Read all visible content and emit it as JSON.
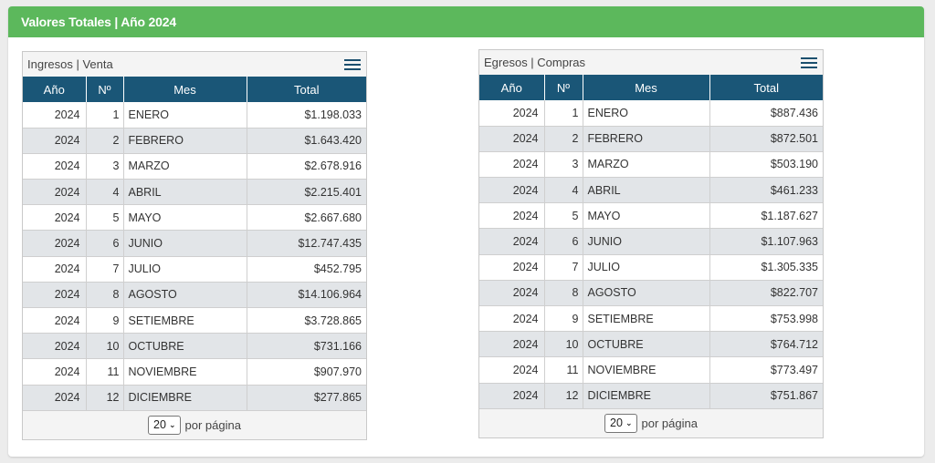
{
  "header": {
    "title": "Valores Totales | Año 2024"
  },
  "ingresos": {
    "title": "Ingresos | Venta",
    "columns": [
      "Año",
      "Nº",
      "Mes",
      "Total"
    ],
    "rows": [
      {
        "year": "2024",
        "num": "1",
        "mes": "ENERO",
        "total": "$1.198.033"
      },
      {
        "year": "2024",
        "num": "2",
        "mes": "FEBRERO",
        "total": "$1.643.420"
      },
      {
        "year": "2024",
        "num": "3",
        "mes": "MARZO",
        "total": "$2.678.916"
      },
      {
        "year": "2024",
        "num": "4",
        "mes": "ABRIL",
        "total": "$2.215.401"
      },
      {
        "year": "2024",
        "num": "5",
        "mes": "MAYO",
        "total": "$2.667.680"
      },
      {
        "year": "2024",
        "num": "6",
        "mes": "JUNIO",
        "total": "$12.747.435"
      },
      {
        "year": "2024",
        "num": "7",
        "mes": "JULIO",
        "total": "$452.795"
      },
      {
        "year": "2024",
        "num": "8",
        "mes": "AGOSTO",
        "total": "$14.106.964"
      },
      {
        "year": "2024",
        "num": "9",
        "mes": "SETIEMBRE",
        "total": "$3.728.865"
      },
      {
        "year": "2024",
        "num": "10",
        "mes": "OCTUBRE",
        "total": "$731.166"
      },
      {
        "year": "2024",
        "num": "11",
        "mes": "NOVIEMBRE",
        "total": "$907.970"
      },
      {
        "year": "2024",
        "num": "12",
        "mes": "DICIEMBRE",
        "total": "$277.865"
      }
    ],
    "pager": {
      "page_size": "20",
      "label": "por página"
    }
  },
  "egresos": {
    "title": "Egresos | Compras",
    "columns": [
      "Año",
      "Nº",
      "Mes",
      "Total"
    ],
    "rows": [
      {
        "year": "2024",
        "num": "1",
        "mes": "ENERO",
        "total": "$887.436"
      },
      {
        "year": "2024",
        "num": "2",
        "mes": "FEBRERO",
        "total": "$872.501"
      },
      {
        "year": "2024",
        "num": "3",
        "mes": "MARZO",
        "total": "$503.190"
      },
      {
        "year": "2024",
        "num": "4",
        "mes": "ABRIL",
        "total": "$461.233"
      },
      {
        "year": "2024",
        "num": "5",
        "mes": "MAYO",
        "total": "$1.187.627"
      },
      {
        "year": "2024",
        "num": "6",
        "mes": "JUNIO",
        "total": "$1.107.963"
      },
      {
        "year": "2024",
        "num": "7",
        "mes": "JULIO",
        "total": "$1.305.335"
      },
      {
        "year": "2024",
        "num": "8",
        "mes": "AGOSTO",
        "total": "$822.707"
      },
      {
        "year": "2024",
        "num": "9",
        "mes": "SETIEMBRE",
        "total": "$753.998"
      },
      {
        "year": "2024",
        "num": "10",
        "mes": "OCTUBRE",
        "total": "$764.712"
      },
      {
        "year": "2024",
        "num": "11",
        "mes": "NOVIEMBRE",
        "total": "$773.497"
      },
      {
        "year": "2024",
        "num": "12",
        "mes": "DICIEMBRE",
        "total": "$751.867"
      }
    ],
    "pager": {
      "page_size": "20",
      "label": "por página"
    }
  },
  "icons": {
    "menu": "hamburger-menu-icon",
    "dropdown": "chevron-down-icon"
  },
  "colors": {
    "header_green": "#5cb85c",
    "table_header": "#1a5677",
    "row_alt": "#e2e5e8"
  }
}
